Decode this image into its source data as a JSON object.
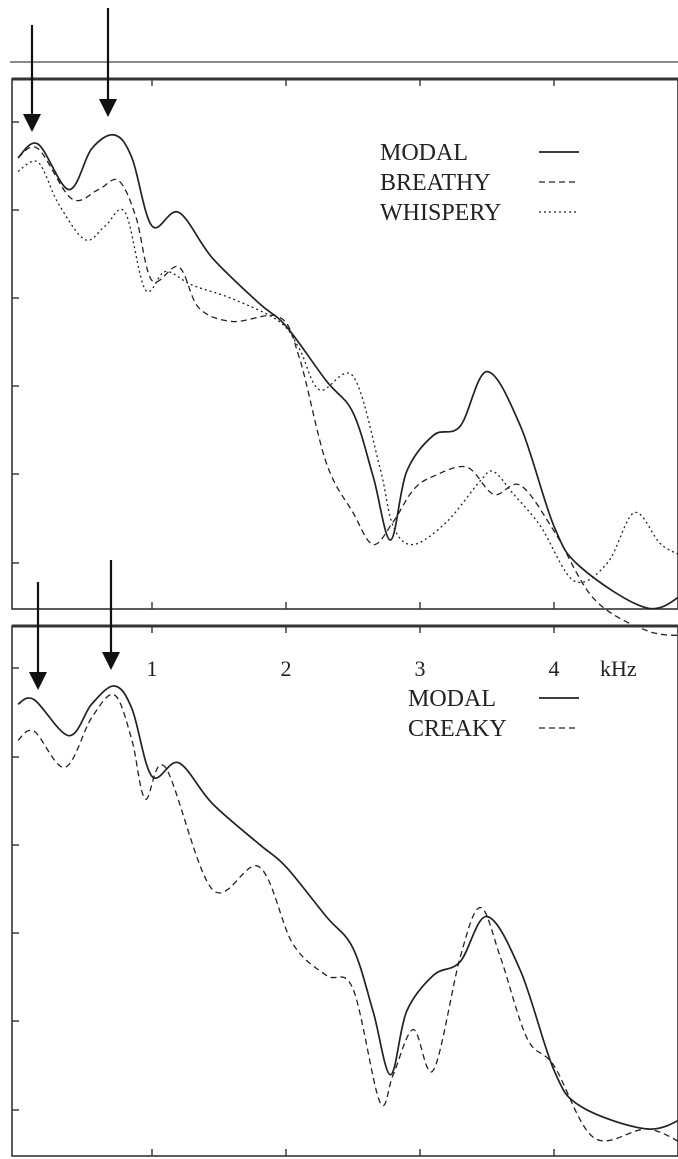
{
  "chart_data": [
    {
      "type": "line",
      "title": "",
      "xlabel": "",
      "ylabel": "",
      "x_unit": "kHz",
      "xlim": [
        0,
        5
      ],
      "grid": false,
      "legend_position": "top-right",
      "legend": [
        {
          "name": "MODAL",
          "style": "solid"
        },
        {
          "name": "BREATHY",
          "style": "dashed"
        },
        {
          "name": "WHISPERY",
          "style": "dotted"
        }
      ],
      "series": [
        {
          "name": "MODAL",
          "x": [
            0,
            0.15,
            0.38,
            0.55,
            0.72,
            0.85,
            1.0,
            1.2,
            1.45,
            1.8,
            2.0,
            2.3,
            2.5,
            2.65,
            2.78,
            2.9,
            3.1,
            3.3,
            3.5,
            3.75,
            4.0,
            4.2,
            4.7,
            5.0
          ],
          "y": [
            0.05,
            0.02,
            0.12,
            0.03,
            0.0,
            0.05,
            0.2,
            0.17,
            0.27,
            0.37,
            0.42,
            0.54,
            0.61,
            0.75,
            0.89,
            0.74,
            0.66,
            0.64,
            0.52,
            0.64,
            0.86,
            0.95,
            1.04,
            1.0
          ]
        },
        {
          "name": "BREATHY",
          "x": [
            0,
            0.15,
            0.4,
            0.6,
            0.75,
            0.88,
            1.0,
            1.2,
            1.35,
            1.6,
            1.95,
            2.1,
            2.3,
            2.5,
            2.65,
            2.8,
            2.95,
            3.1,
            3.35,
            3.55,
            3.75,
            4.0,
            4.3,
            4.7,
            5.0
          ],
          "y": [
            0.05,
            0.03,
            0.14,
            0.12,
            0.1,
            0.18,
            0.32,
            0.29,
            0.38,
            0.41,
            0.4,
            0.49,
            0.72,
            0.83,
            0.9,
            0.85,
            0.78,
            0.75,
            0.73,
            0.79,
            0.77,
            0.87,
            1.02,
            1.09,
            1.1
          ]
        },
        {
          "name": "WHISPERY",
          "x": [
            0,
            0.15,
            0.3,
            0.5,
            0.65,
            0.8,
            0.95,
            1.1,
            1.3,
            1.6,
            1.95,
            2.1,
            2.25,
            2.5,
            2.7,
            2.8,
            2.95,
            3.2,
            3.45,
            3.55,
            3.7,
            3.9,
            4.15,
            4.4,
            4.6,
            4.8,
            5.0
          ],
          "y": [
            0.08,
            0.06,
            0.15,
            0.23,
            0.2,
            0.17,
            0.34,
            0.3,
            0.33,
            0.36,
            0.41,
            0.47,
            0.56,
            0.53,
            0.73,
            0.86,
            0.9,
            0.85,
            0.76,
            0.74,
            0.79,
            0.86,
            0.98,
            0.94,
            0.83,
            0.9,
            0.93
          ]
        }
      ]
    },
    {
      "type": "line",
      "title": "",
      "xlabel": "",
      "ylabel": "",
      "x_unit": "kHz",
      "xlim": [
        0,
        5
      ],
      "xticks": [
        "1",
        "2",
        "3",
        "4"
      ],
      "grid": false,
      "legend_position": "top-right",
      "legend": [
        {
          "name": "MODAL",
          "style": "solid"
        },
        {
          "name": "CREAKY",
          "style": "dashed"
        }
      ],
      "series": [
        {
          "name": "MODAL",
          "x": [
            0,
            0.12,
            0.38,
            0.55,
            0.72,
            0.85,
            1.0,
            1.2,
            1.45,
            1.8,
            2.0,
            2.3,
            2.5,
            2.65,
            2.78,
            2.9,
            3.1,
            3.3,
            3.5,
            3.75,
            4.0,
            4.2,
            4.7,
            5.0
          ],
          "y": [
            0.04,
            0.03,
            0.11,
            0.04,
            0.0,
            0.05,
            0.2,
            0.17,
            0.26,
            0.35,
            0.4,
            0.51,
            0.58,
            0.72,
            0.86,
            0.72,
            0.64,
            0.61,
            0.51,
            0.63,
            0.85,
            0.93,
            0.98,
            0.95
          ]
        },
        {
          "name": "CREAKY",
          "x": [
            0,
            0.12,
            0.35,
            0.55,
            0.72,
            0.85,
            0.95,
            1.1,
            1.45,
            1.8,
            2.05,
            2.3,
            2.5,
            2.7,
            2.8,
            2.95,
            3.1,
            3.3,
            3.45,
            3.6,
            3.8,
            4.0,
            4.3,
            4.7,
            5.0
          ],
          "y": [
            0.12,
            0.1,
            0.18,
            0.07,
            0.02,
            0.12,
            0.25,
            0.18,
            0.45,
            0.4,
            0.57,
            0.64,
            0.67,
            0.92,
            0.86,
            0.76,
            0.85,
            0.6,
            0.49,
            0.6,
            0.78,
            0.84,
            1.0,
            0.98,
            1.02
          ]
        }
      ]
    }
  ]
}
